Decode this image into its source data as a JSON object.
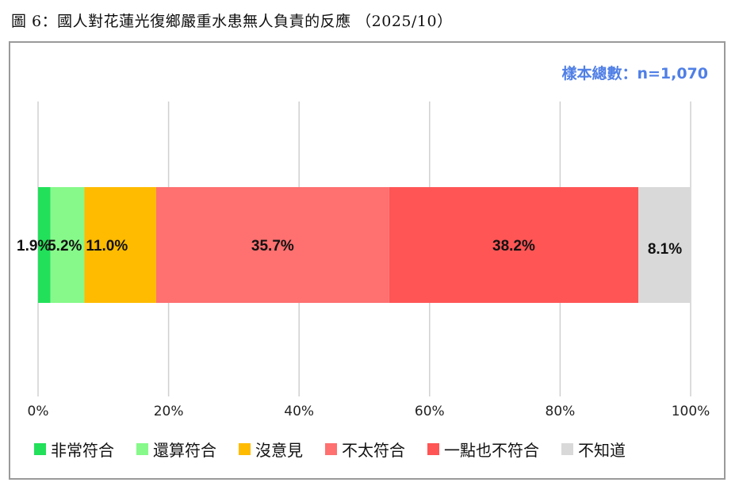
{
  "caption": "圖 6：國人對花蓮光復鄉嚴重水患無人負責的反應 （2025/10）",
  "sample_label": "樣本總數：n=1,070",
  "chart_data": {
    "type": "bar",
    "orientation": "horizontal-stacked",
    "xlim": [
      0,
      100
    ],
    "x_ticks": [
      "0%",
      "20%",
      "40%",
      "60%",
      "80%",
      "100%"
    ],
    "grid": true,
    "legend_position": "bottom",
    "series": [
      {
        "name": "非常符合",
        "value": 1.9,
        "label": "1.9%",
        "color": "#22e05a"
      },
      {
        "name": "還算符合",
        "value": 5.2,
        "label": "5.2%",
        "color": "#86f98a"
      },
      {
        "name": "沒意見",
        "value": 11.0,
        "label": "11.0%",
        "color": "#ffbb00"
      },
      {
        "name": "不太符合",
        "value": 35.7,
        "label": "35.7%",
        "color": "#ff7070"
      },
      {
        "name": "一點也不符合",
        "value": 38.2,
        "label": "38.2%",
        "color": "#ff5555"
      },
      {
        "name": "不知道",
        "value": 8.1,
        "label": "8.1%",
        "color": "#d9d9d9"
      }
    ]
  }
}
